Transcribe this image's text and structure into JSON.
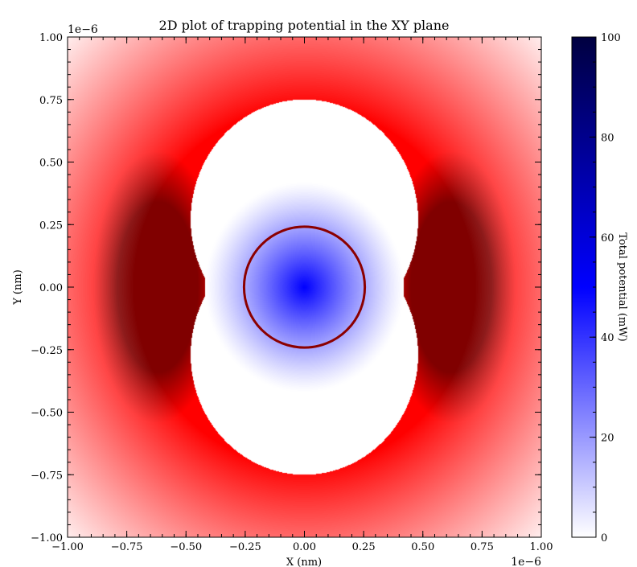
{
  "chart_data": {
    "type": "heatmap",
    "title": "2D plot of trapping potential in the XY plane",
    "xlabel": "X (nm)",
    "ylabel": "Y (nm)",
    "x_offset_text": "1e−6",
    "y_offset_text": "1e−6",
    "xlim": [
      -1.0,
      1.0
    ],
    "ylim": [
      -1.0,
      1.0
    ],
    "x_ticks": [
      -1.0,
      -0.75,
      -0.5,
      -0.25,
      0.0,
      0.25,
      0.5,
      0.75,
      1.0
    ],
    "x_tick_labels": [
      "−1.00",
      "−0.75",
      "−0.50",
      "−0.25",
      "0.00",
      "0.25",
      "0.50",
      "0.75",
      "1.00"
    ],
    "y_ticks": [
      -1.0,
      -0.75,
      -0.5,
      -0.25,
      0.0,
      0.25,
      0.5,
      0.75,
      1.0
    ],
    "y_tick_labels": [
      "−1.00",
      "−0.75",
      "−0.50",
      "−0.25",
      "0.00",
      "0.25",
      "0.50",
      "0.75",
      "1.00"
    ],
    "colorbar": {
      "label": "Total potential (mW)",
      "range": [
        0,
        100
      ],
      "ticks": [
        0,
        20,
        40,
        60,
        80,
        100
      ],
      "tick_labels": [
        "0",
        "20",
        "40",
        "60",
        "80",
        "100"
      ],
      "colors": [
        "#ffffff",
        "#0000ff",
        "#000040"
      ]
    },
    "features": [
      {
        "name": "central-blue-well",
        "center": [
          0.0,
          0.0
        ],
        "radius": 0.26,
        "peak_value": 48
      },
      {
        "name": "trap-contour",
        "type": "circle",
        "center": [
          0.0,
          0.0
        ],
        "radius": 0.255,
        "color": "#8b0000"
      },
      {
        "name": "left-dark-red-lobe",
        "center": [
          -0.62,
          0.0
        ],
        "color": "#800000"
      },
      {
        "name": "right-dark-red-lobe",
        "center": [
          0.62,
          0.0
        ],
        "color": "#800000"
      }
    ],
    "palette": {
      "red": "#ff0000",
      "dark_red": "#800000",
      "white": "#ffffff",
      "blue": "#0000ff",
      "navy": "#000040"
    },
    "grid": false
  }
}
